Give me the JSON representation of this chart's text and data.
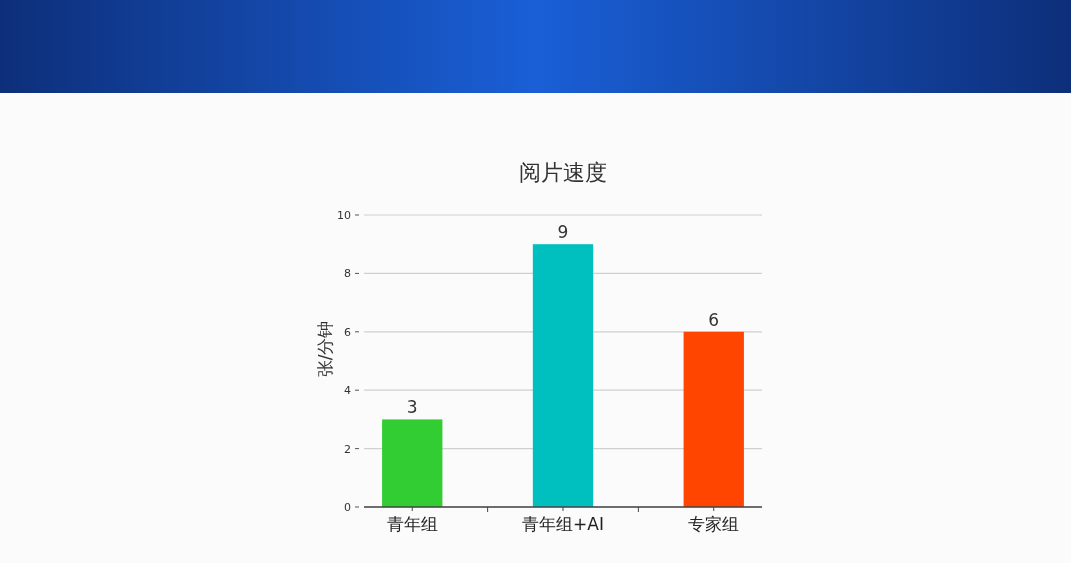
{
  "chart_data": {
    "type": "bar",
    "title": "阅片速度",
    "ylabel": "张/分钟",
    "categories": [
      "青年组",
      "青年组+AI",
      "专家组"
    ],
    "values": [
      3,
      9,
      6
    ],
    "colors": [
      "#32cd32",
      "#00bfbf",
      "#ff4500"
    ],
    "data_labels": true,
    "ylim": [
      0,
      10
    ],
    "yticks": [
      0,
      2,
      4,
      6,
      8,
      10
    ],
    "grid": "y"
  }
}
